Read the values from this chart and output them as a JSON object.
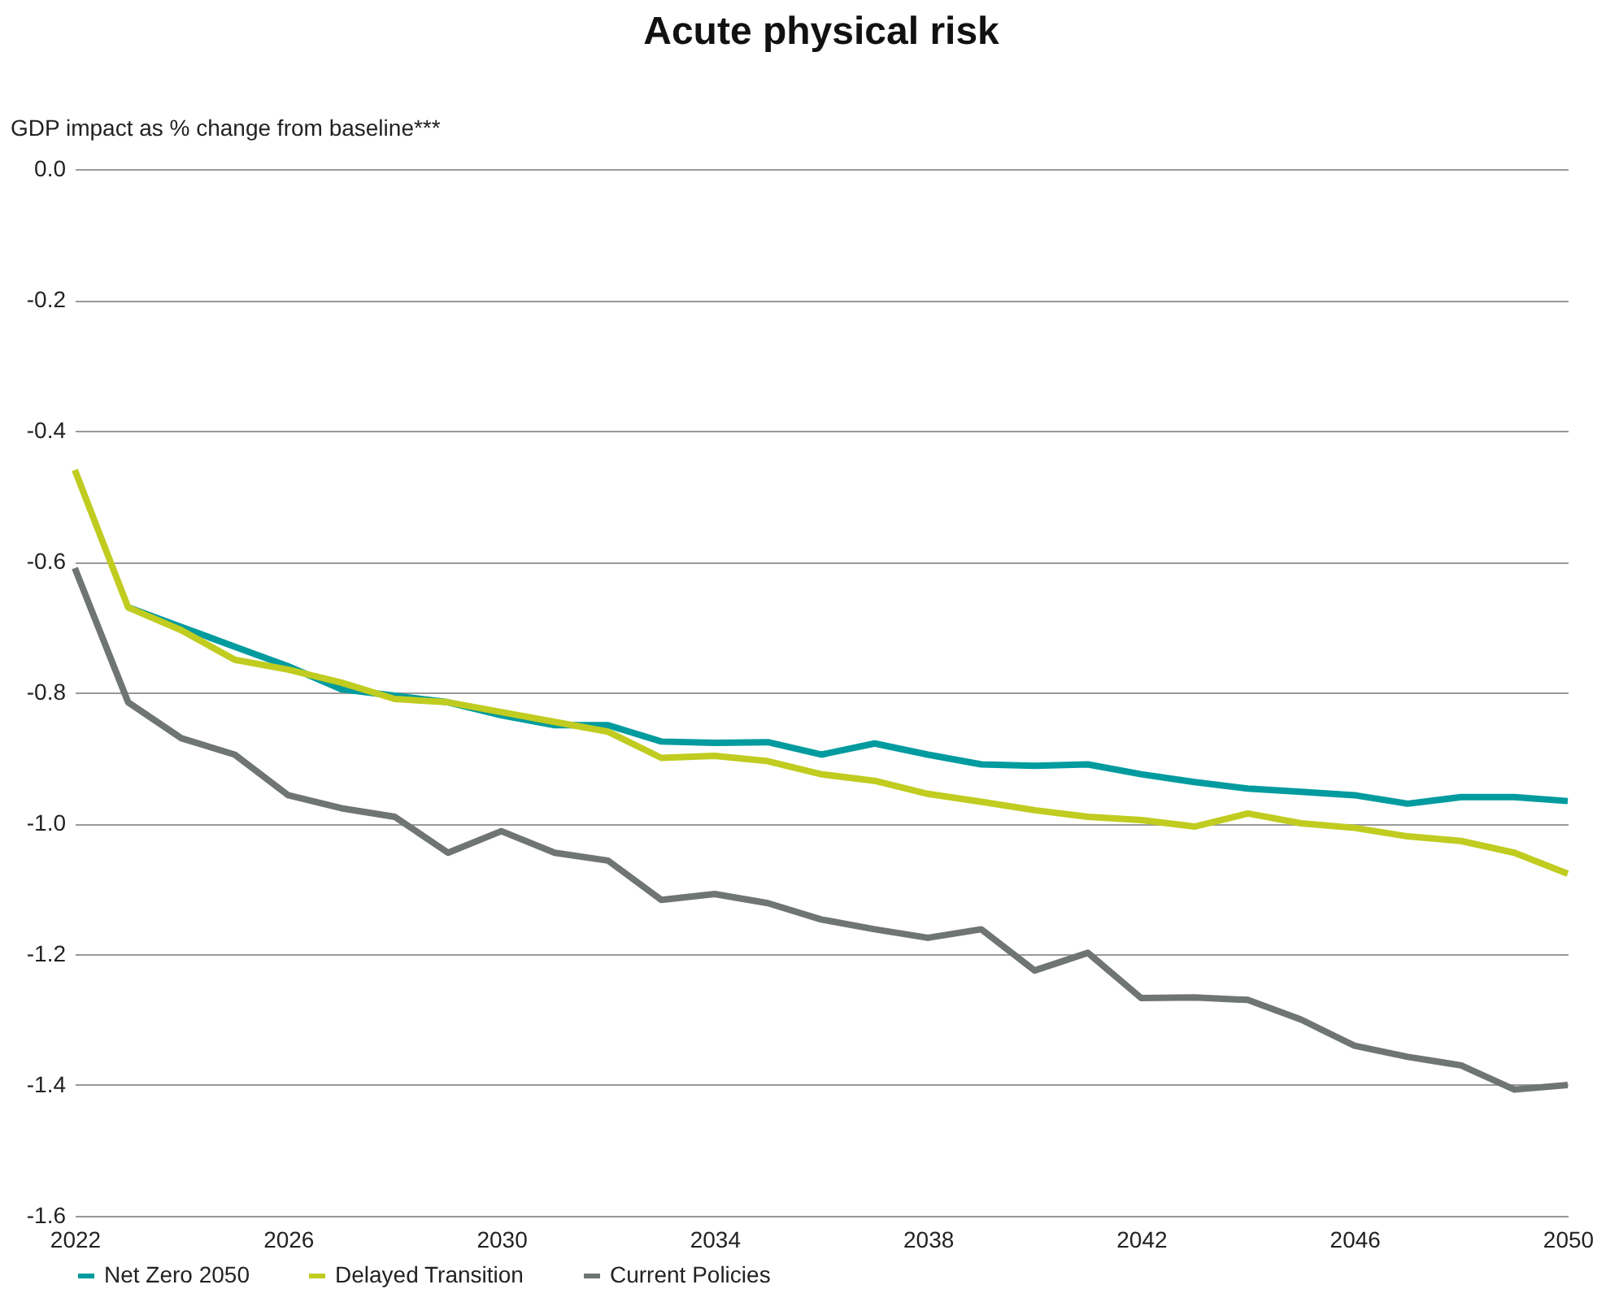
{
  "chart_data": {
    "type": "line",
    "title": "Acute physical risk",
    "ylabel": "GDP impact as % change from baseline***",
    "x": [
      2022,
      2023,
      2024,
      2025,
      2026,
      2027,
      2028,
      2029,
      2030,
      2031,
      2032,
      2033,
      2034,
      2035,
      2036,
      2037,
      2038,
      2039,
      2040,
      2041,
      2042,
      2043,
      2044,
      2045,
      2046,
      2047,
      2048,
      2049,
      2050
    ],
    "series": [
      {
        "name": "Net Zero 2050",
        "color": "#009b9e",
        "values": [
          null,
          -0.67,
          -0.7,
          -0.73,
          -0.76,
          -0.795,
          -0.805,
          -0.815,
          -0.835,
          -0.85,
          -0.85,
          -0.875,
          -0.877,
          -0.876,
          -0.895,
          -0.878,
          -0.895,
          -0.91,
          -0.912,
          -0.91,
          -0.925,
          -0.937,
          -0.947,
          -0.952,
          -0.957,
          -0.97,
          -0.96,
          -0.96,
          -0.966
        ]
      },
      {
        "name": "Delayed Transition",
        "color": "#c0cc1f",
        "values": [
          -0.46,
          -0.67,
          -0.705,
          -0.75,
          -0.765,
          -0.785,
          -0.81,
          -0.815,
          -0.83,
          -0.845,
          -0.86,
          -0.9,
          -0.897,
          -0.905,
          -0.925,
          -0.935,
          -0.955,
          -0.967,
          -0.98,
          -0.99,
          -0.995,
          -1.005,
          -0.985,
          -1.0,
          -1.007,
          -1.02,
          -1.027,
          -1.045,
          -1.077
        ]
      },
      {
        "name": "Current Policies",
        "color": "#6f7573",
        "values": [
          -0.61,
          -0.815,
          -0.87,
          -0.895,
          -0.957,
          -0.977,
          -0.99,
          -1.045,
          -1.012,
          -1.045,
          -1.057,
          -1.117,
          -1.108,
          -1.122,
          -1.147,
          -1.162,
          -1.175,
          -1.162,
          -1.225,
          -1.198,
          -1.267,
          -1.266,
          -1.27,
          -1.3,
          -1.34,
          -1.357,
          -1.37,
          -1.407,
          -1.4
        ]
      }
    ],
    "xlim": [
      2022,
      2050
    ],
    "xticks": [
      2022,
      2026,
      2030,
      2034,
      2038,
      2042,
      2046,
      2050
    ],
    "ylim": [
      -1.6,
      0
    ],
    "yticks": [
      {
        "value": -1.6,
        "label": "-1.6"
      },
      {
        "value": -1.4,
        "label": "-1.4"
      },
      {
        "value": -1.2,
        "label": "-1.2"
      },
      {
        "value": -1.0,
        "label": "-1.0"
      },
      {
        "value": -0.8,
        "label": "-0.8"
      },
      {
        "value": -0.6,
        "label": "-0.6"
      },
      {
        "value": -0.4,
        "label": "-0.4"
      },
      {
        "value": -0.2,
        "label": "-0.2"
      },
      {
        "value": 0,
        "label": "0.0"
      }
    ],
    "grid": "y",
    "legend": "bottom",
    "line_style": "solid"
  }
}
